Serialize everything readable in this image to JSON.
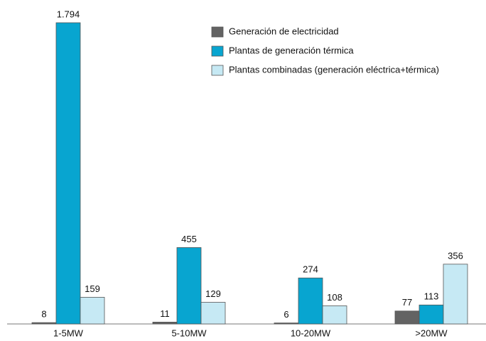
{
  "chart_data": {
    "type": "bar",
    "categories": [
      "1-5MW",
      "5-10MW",
      "10-20MW",
      ">20MW"
    ],
    "series": [
      {
        "name": "Generación de electricidad",
        "color": "#636363",
        "values": [
          8,
          11,
          6,
          77
        ]
      },
      {
        "name": "Plantas de generación térmica",
        "color": "#08a5d0",
        "values": [
          1794,
          455,
          274,
          113
        ],
        "value_labels": [
          "1.794",
          "455",
          "274",
          "113"
        ]
      },
      {
        "name": "Plantas combinadas (generación eléctrica+térmica)",
        "color": "#c6e9f4",
        "values": [
          159,
          129,
          108,
          356
        ]
      }
    ]
  }
}
